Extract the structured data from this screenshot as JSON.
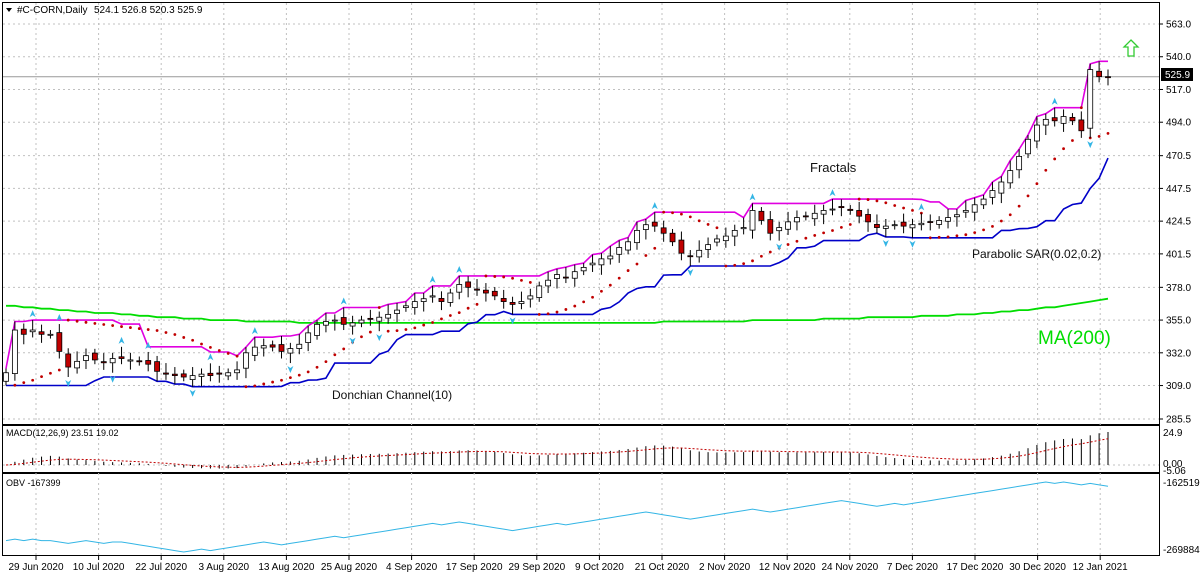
{
  "header": {
    "symbol": "#C-CORN,Daily",
    "ohlc": "524.1 526.8 520.3 525.9"
  },
  "colors": {
    "bull": "#ffffff",
    "bear": "#c00000",
    "candle_outline": "#000000",
    "donchian_upper": "#e000e0",
    "donchian_lower": "#0000c8",
    "ma200": "#00dd00",
    "sar": "#c00000",
    "fractal": "#33b5e5",
    "macd_signal": "#c00000",
    "macd_hist": "#000000",
    "obv": "#33b5e5",
    "arrow": "#33cc33",
    "grid": "#c0c0c0"
  },
  "annotations": {
    "fractals": "Fractals",
    "sar": "Parabolic SAR(0.02,0.2)",
    "ma": "MA(200)",
    "donchian": "Donchian Channel(10)"
  },
  "macd_panel": {
    "label": "MACD(12,26,9) 23.51 19.02",
    "ticks": [
      "24.9",
      "0.00",
      "-5.06"
    ]
  },
  "obv_panel": {
    "label": "OBV -167399",
    "ticks": [
      "-162519",
      "-269884"
    ]
  },
  "chart_data": {
    "type": "candlestick",
    "price_ticks": [
      "563.0",
      "540.0",
      "517.0",
      "494.0",
      "470.5",
      "447.5",
      "424.5",
      "401.5",
      "378.0",
      "355.0",
      "332.0",
      "309.0",
      "285.5"
    ],
    "price_range": [
      285.5,
      563.0
    ],
    "last_price": "525.9",
    "date_labels": [
      "29 Jun 2020",
      "10 Jul 2020",
      "22 Jul 2020",
      "3 Aug 2020",
      "13 Aug 2020",
      "25 Aug 2020",
      "4 Sep 2020",
      "17 Sep 2020",
      "29 Sep 2020",
      "9 Oct 2020",
      "21 Oct 2020",
      "2 Nov 2020",
      "12 Nov 2020",
      "24 Nov 2020",
      "7 Dec 2020",
      "17 Dec 2020",
      "30 Dec 2020",
      "12 Jan 2021"
    ],
    "close": [
      318,
      348,
      345,
      348,
      345,
      345,
      333,
      322,
      326,
      330,
      327,
      325,
      328,
      328,
      327,
      326,
      324,
      319,
      317,
      316,
      315,
      316,
      317,
      316,
      317,
      318,
      320,
      332,
      336,
      337,
      336,
      333,
      335,
      338,
      346,
      352,
      354,
      355,
      352,
      353,
      355,
      356,
      357,
      359,
      362,
      365,
      368,
      370,
      372,
      368,
      374,
      380,
      378,
      376,
      374,
      372,
      368,
      366,
      368,
      372,
      379,
      383,
      387,
      385,
      389,
      392,
      395,
      398,
      400,
      406,
      410,
      418,
      422,
      421,
      416,
      410,
      402,
      400,
      404,
      408,
      412,
      414,
      418,
      420,
      432,
      425,
      416,
      420,
      424,
      427,
      428,
      430,
      432,
      433,
      434,
      432,
      428,
      424,
      420,
      421,
      422,
      421,
      422,
      423,
      424,
      425,
      427,
      429,
      432,
      436,
      440,
      446,
      452,
      460,
      470,
      482,
      492,
      496,
      495,
      498,
      495,
      488,
      531,
      526,
      525.9
    ],
    "ma200": [
      365,
      365,
      364,
      364,
      363,
      363,
      362,
      362,
      361,
      361,
      360,
      360,
      360,
      359,
      359,
      358,
      358,
      357,
      357,
      357,
      356,
      356,
      356,
      355,
      355,
      355,
      355,
      354,
      354,
      354,
      354,
      354,
      354,
      353,
      353,
      353,
      353,
      353,
      353,
      353,
      353,
      353,
      353,
      353,
      353,
      353,
      353,
      353,
      353,
      353,
      353,
      353,
      353,
      353,
      353,
      353,
      353,
      353,
      353,
      353,
      353,
      353,
      353,
      353,
      353,
      353,
      353,
      353,
      353,
      353,
      353,
      353,
      353,
      353,
      354,
      354,
      354,
      354,
      354,
      354,
      354,
      354,
      354,
      354,
      355,
      355,
      355,
      355,
      355,
      355,
      355,
      355,
      356,
      356,
      356,
      356,
      356,
      357,
      357,
      357,
      357,
      357,
      357,
      358,
      358,
      358,
      358,
      359,
      359,
      359,
      360,
      360,
      361,
      361,
      362,
      362,
      363,
      364,
      364,
      365,
      366,
      367,
      368,
      369,
      370
    ]
  }
}
